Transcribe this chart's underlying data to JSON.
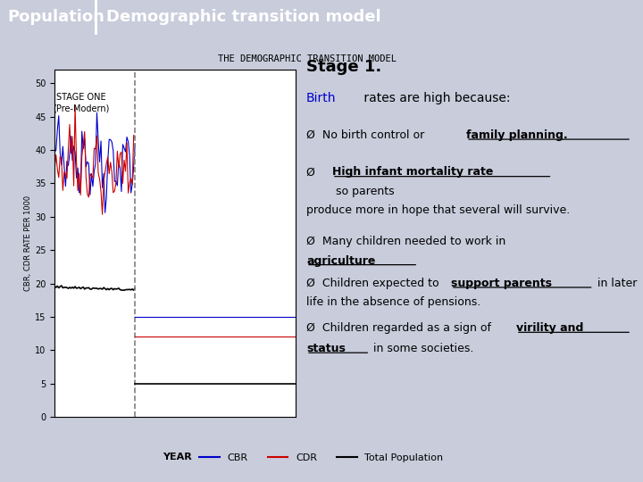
{
  "title_left": "Population",
  "title_right": "Demographic transition model",
  "title_bg": "#8b96c8",
  "chart_title": "THE DEMOGRAPHIC TRANSITION MODEL",
  "stage_label": "STAGE ONE\n(Pre-Modern)",
  "ylabel": "CBR, CDR RATE PER 1000",
  "xlabel": "YEAR",
  "ylim": [
    0,
    52
  ],
  "yticks": [
    0,
    5,
    10,
    15,
    20,
    25,
    30,
    35,
    40,
    45,
    50
  ],
  "cbr_color": "#0000cc",
  "cdr_color": "#cc0000",
  "total_pop_color": "#000000",
  "bg_color": "#c8ccdb",
  "plot_bg_color": "#ffffff",
  "legend_labels": [
    "CBR",
    "CDR",
    "Total Population"
  ]
}
